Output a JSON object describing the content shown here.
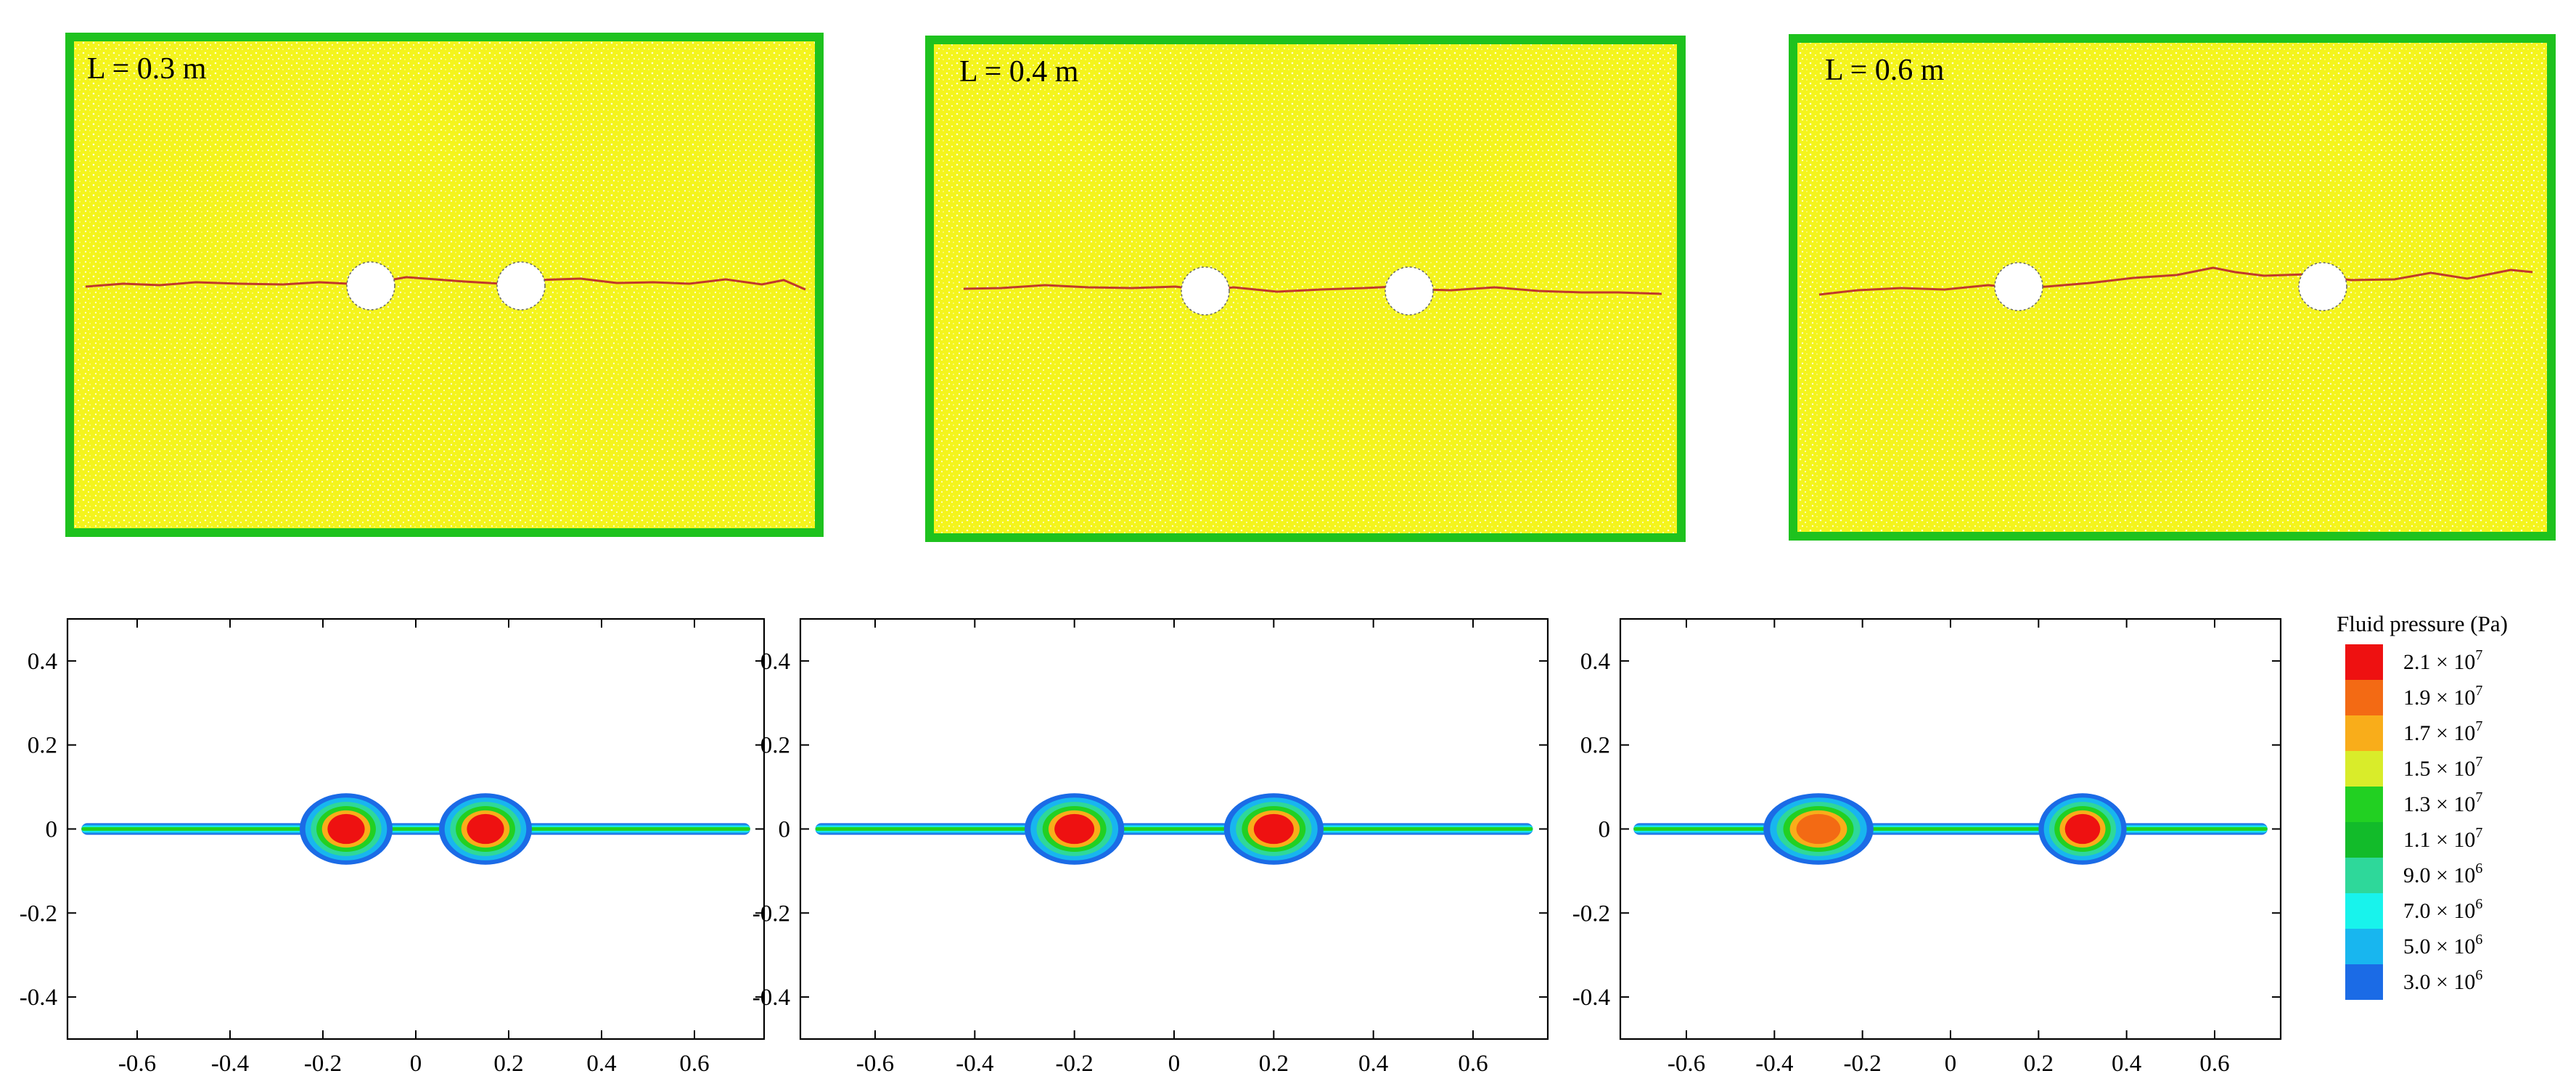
{
  "panels": [
    {
      "label": "L = 0.3 m",
      "holes": [
        -0.15,
        0.15
      ]
    },
    {
      "label": "L = 0.4 m",
      "holes": [
        -0.2,
        0.2
      ]
    },
    {
      "label": "L = 0.6 m",
      "holes": [
        -0.3,
        0.3
      ]
    }
  ],
  "plots": {
    "xlim": [
      -0.75,
      0.75
    ],
    "ylim": [
      -0.5,
      0.5
    ],
    "x_ticks": [
      -0.6,
      -0.4,
      -0.2,
      0,
      0.2,
      0.4,
      0.6
    ],
    "x_tick_labels": [
      "-0.6",
      "-0.4",
      "-0.2",
      "0",
      "0.2",
      "0.4",
      "0.6"
    ],
    "y_ticks": [
      0.4,
      0.2,
      0,
      -0.2,
      -0.4
    ],
    "y_tick_labels": [
      "0.4",
      "0.2",
      "0",
      "-0.2",
      "-0.4"
    ]
  },
  "legend": {
    "title": "Fluid pressure (Pa)",
    "levels": [
      {
        "mantissa": "2.1",
        "exp": "7",
        "color": "#ee1111"
      },
      {
        "mantissa": "1.9",
        "exp": "7",
        "color": "#f36a14"
      },
      {
        "mantissa": "1.7",
        "exp": "7",
        "color": "#f9ad1a"
      },
      {
        "mantissa": "1.5",
        "exp": "7",
        "color": "#d9ec2a"
      },
      {
        "mantissa": "1.3",
        "exp": "7",
        "color": "#22d022"
      },
      {
        "mantissa": "1.1",
        "exp": "7",
        "color": "#12bb2a"
      },
      {
        "mantissa": "9.0",
        "exp": "6",
        "color": "#2ed89a"
      },
      {
        "mantissa": "7.0",
        "exp": "6",
        "color": "#18f3ec"
      },
      {
        "mantissa": "5.0",
        "exp": "6",
        "color": "#18b6ef"
      },
      {
        "mantissa": "3.0",
        "exp": "6",
        "color": "#1b6be6"
      }
    ],
    "times_symbol": "×",
    "base": "10"
  },
  "colors": {
    "rock": "#f6f617",
    "boundary": "#1ec21e",
    "fracture": "#c0392b"
  }
}
